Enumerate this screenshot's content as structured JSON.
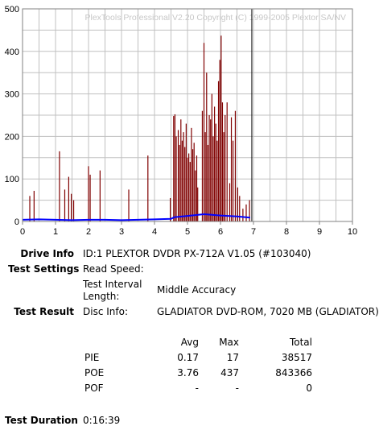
{
  "chart_data": {
    "type": "bar",
    "watermark": "PlexTools Professional V2.20 Copyright (C) 1999-2005 Plextor SA/NV",
    "xlim": [
      0,
      10
    ],
    "ylim": [
      0,
      500
    ],
    "x_ticks": [
      "0",
      "1",
      "2",
      "3",
      "4",
      "5",
      "6",
      "7",
      "8",
      "9",
      "10"
    ],
    "y_ticks": [
      "0",
      "100",
      "200",
      "300",
      "400",
      "500"
    ],
    "grid": true,
    "colors": {
      "bars": "#800000",
      "baseline": "#0000ff",
      "grid": "#c0c0c0",
      "marker": "#000000"
    },
    "marker_x": 6.95,
    "series": [
      {
        "name": "POE",
        "x": [
          0.22,
          0.35,
          1.12,
          1.28,
          1.4,
          1.48,
          1.55,
          2.0,
          2.05,
          2.35,
          3.22,
          3.8,
          4.48,
          4.58,
          4.62,
          4.66,
          4.72,
          4.76,
          4.8,
          4.84,
          4.88,
          4.92,
          4.96,
          5.0,
          5.04,
          5.08,
          5.12,
          5.16,
          5.2,
          5.24,
          5.28,
          5.31,
          5.45,
          5.5,
          5.54,
          5.58,
          5.62,
          5.66,
          5.7,
          5.74,
          5.78,
          5.82,
          5.86,
          5.9,
          5.94,
          5.98,
          6.02,
          6.06,
          6.1,
          6.14,
          6.2,
          6.28,
          6.33,
          6.38,
          6.45,
          6.52,
          6.58,
          6.68,
          6.78,
          6.88
        ],
        "values": [
          60,
          72,
          165,
          75,
          105,
          65,
          50,
          130,
          110,
          120,
          75,
          155,
          55,
          248,
          252,
          200,
          215,
          180,
          240,
          190,
          210,
          175,
          230,
          150,
          160,
          140,
          220,
          170,
          185,
          120,
          155,
          80,
          260,
          420,
          210,
          350,
          180,
          250,
          240,
          300,
          200,
          270,
          230,
          190,
          330,
          380,
          437,
          280,
          210,
          250,
          280,
          90,
          245,
          190,
          260,
          80,
          60,
          30,
          40,
          50
        ]
      },
      {
        "name": "PIE",
        "x": [
          0.0,
          0.5,
          1.0,
          1.5,
          2.0,
          2.5,
          3.0,
          3.5,
          4.0,
          4.5,
          4.6,
          5.0,
          5.5,
          6.0,
          6.5,
          6.9
        ],
        "values": [
          4,
          5,
          4,
          3,
          4,
          4,
          3,
          4,
          5,
          6,
          10,
          13,
          17,
          14,
          12,
          9
        ]
      }
    ]
  },
  "info": {
    "drive_label": "Drive Info",
    "drive_value": "ID:1 PLEXTOR DVDR PX-712A V1.05 (#103040)",
    "settings_label": "Test Settings",
    "read_speed_label": "Read Speed:",
    "interval_label_1": "Test Interval",
    "interval_label_2": "Length:",
    "interval_value": "Middle Accuracy",
    "result_label": "Test Result",
    "disc_info_label": "Disc Info:",
    "disc_info_value": "GLADIATOR DVD-ROM, 7020 MB (GLADIATOR)",
    "duration_label": "Test Duration",
    "duration_value": "0:16:39"
  },
  "table": {
    "col_avg": "Avg",
    "col_max": "Max",
    "col_total": "Total",
    "rows": [
      {
        "name": "PIE",
        "avg": "0.17",
        "max": "17",
        "total": "38517"
      },
      {
        "name": "POE",
        "avg": "3.76",
        "max": "437",
        "total": "843366"
      },
      {
        "name": "POF",
        "avg": "-",
        "max": "-",
        "total": "0"
      }
    ]
  }
}
